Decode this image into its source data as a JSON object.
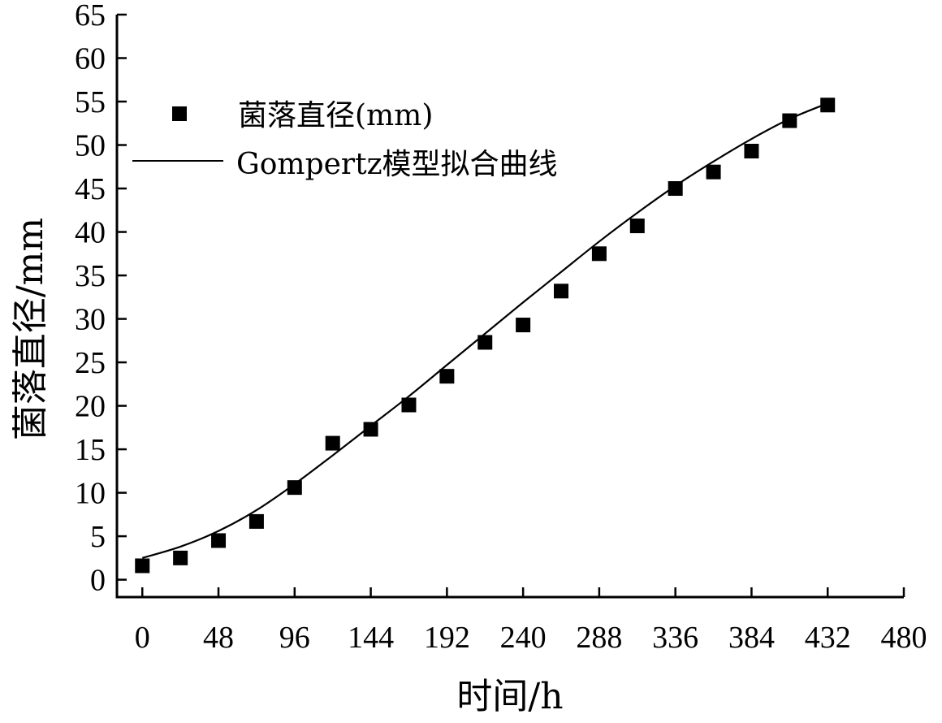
{
  "chart_data": {
    "type": "scatter",
    "xlabel": "时间/h",
    "ylabel": "菌落直径/mm",
    "xlim": [
      -16,
      480
    ],
    "ylim": [
      -2,
      65
    ],
    "xticks": [
      0,
      48,
      96,
      144,
      192,
      240,
      288,
      336,
      384,
      432,
      480
    ],
    "yticks": [
      0,
      5,
      10,
      15,
      20,
      25,
      30,
      35,
      40,
      45,
      50,
      55,
      60,
      65
    ],
    "grid": false,
    "legend_position": "top-left",
    "legend": {
      "points_label": "菌落直径(mm)",
      "curve_label": "Gompertz模型拟合曲线"
    },
    "series": [
      {
        "name": "菌落直径(mm)",
        "kind": "points",
        "x": [
          0,
          24,
          48,
          72,
          96,
          120,
          144,
          168,
          192,
          216,
          240,
          264,
          288,
          312,
          336,
          360,
          384,
          408,
          432
        ],
        "y": [
          1.6,
          2.5,
          4.5,
          6.7,
          10.6,
          15.7,
          17.3,
          20.1,
          23.4,
          27.3,
          29.3,
          33.2,
          37.5,
          40.7,
          45.0,
          46.9,
          49.3,
          52.8,
          54.6
        ]
      },
      {
        "name": "Gompertz模型拟合曲线",
        "kind": "curve",
        "x": [
          0,
          24,
          48,
          72,
          96,
          120,
          144,
          168,
          192,
          216,
          240,
          264,
          288,
          312,
          336,
          360,
          384,
          408,
          432
        ],
        "y": [
          2.5,
          3.8,
          5.6,
          8.0,
          11.0,
          14.3,
          17.7,
          21.1,
          24.7,
          28.3,
          31.9,
          35.4,
          38.9,
          42.2,
          45.3,
          48.1,
          50.7,
          53.0,
          54.8
        ]
      }
    ]
  }
}
